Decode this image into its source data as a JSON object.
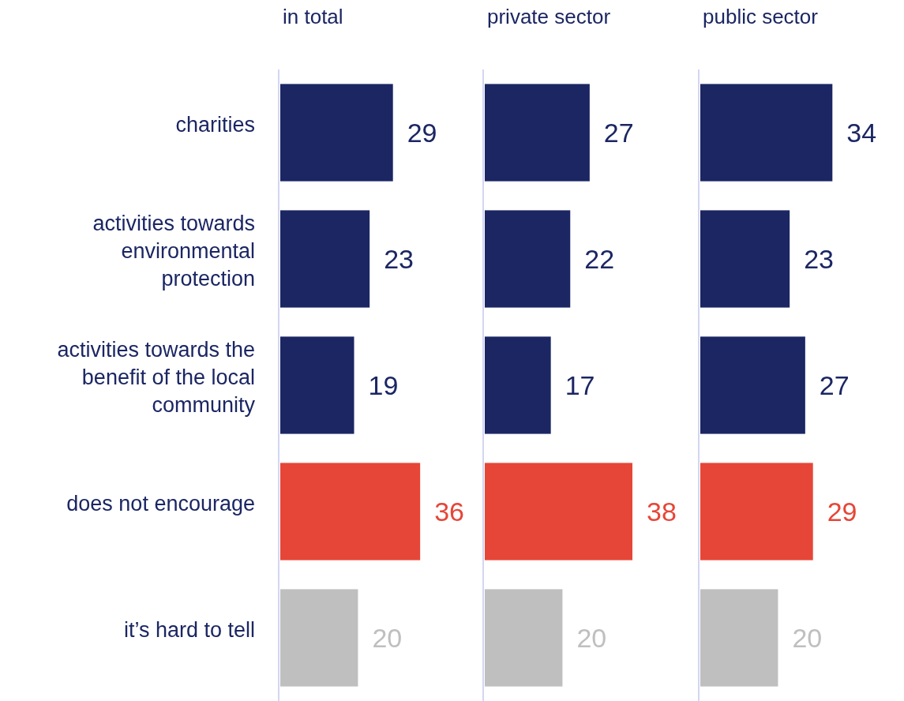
{
  "chart_data": [
    {
      "type": "bar",
      "orientation": "horizontal",
      "title": "in total",
      "categories": [
        "charities",
        "activities towards environmental protection",
        "activities towards the benefit of the local community",
        "does not encourage",
        "it’s hard to tell"
      ],
      "values": [
        29,
        23,
        19,
        36,
        20
      ],
      "colors": [
        "#1b2663",
        "#1b2663",
        "#1b2663",
        "#e64637",
        "#bfbfbf"
      ],
      "data_labels": true,
      "tick_labels": "y"
    },
    {
      "type": "bar",
      "orientation": "horizontal",
      "title": "private sector",
      "categories": [
        null,
        null,
        null,
        null,
        null
      ],
      "values": [
        27,
        22,
        17,
        38,
        20
      ],
      "colors": [
        "#1b2663",
        "#1b2663",
        "#1b2663",
        "#e64637",
        "#bfbfbf"
      ],
      "data_labels": true,
      "tick_labels": false
    },
    {
      "type": "bar",
      "orientation": "horizontal",
      "title": "public sector",
      "categories": [
        null,
        null,
        null,
        null,
        null
      ],
      "values": [
        34,
        23,
        27,
        29,
        20
      ],
      "colors": [
        "#1b2663",
        "#1b2663",
        "#1b2663",
        "#e64637",
        "#bfbfbf"
      ],
      "data_labels": true,
      "tick_labels": false
    }
  ]
}
